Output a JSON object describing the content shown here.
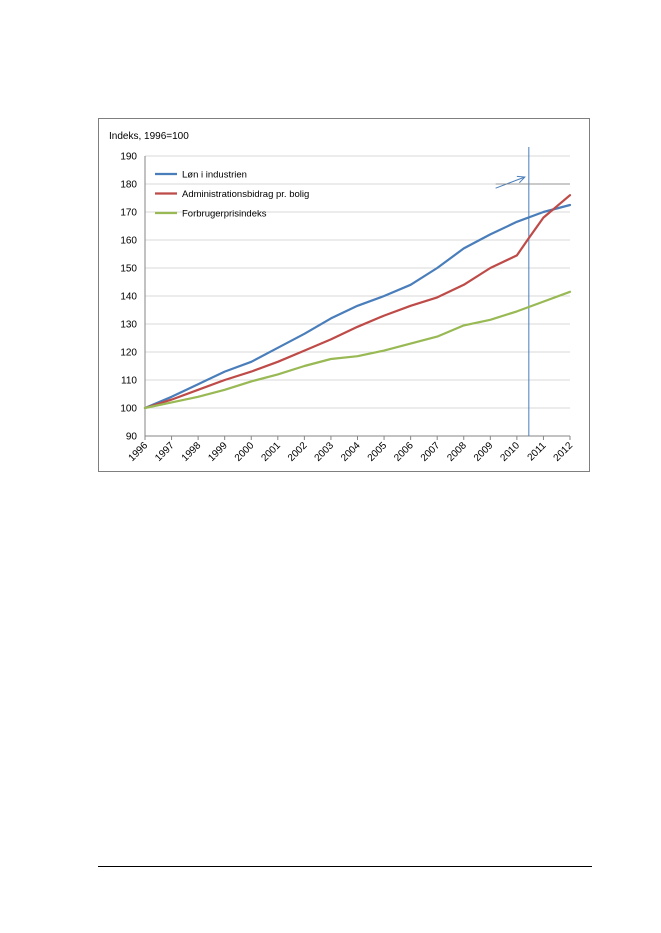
{
  "chart_data": {
    "type": "line",
    "ylabel": "Indeks, 1996=100",
    "ylim": [
      90,
      190
    ],
    "yticks": [
      90,
      100,
      110,
      120,
      130,
      140,
      150,
      160,
      170,
      180,
      190
    ],
    "xlim": [
      1996,
      2012
    ],
    "categories": [
      "1996",
      "1997",
      "1998",
      "1999",
      "2000",
      "2001",
      "2002",
      "2003",
      "2004",
      "2005",
      "2006",
      "2007",
      "2008",
      "2009",
      "2010",
      "2011",
      "2012"
    ],
    "grid": true,
    "legend_position": "top-left",
    "series": [
      {
        "name": "Løn i industrien",
        "color": "#4a7ebb",
        "x": [
          1996,
          1997,
          1998,
          1999,
          2000,
          2001,
          2002,
          2003,
          2004,
          2005,
          2006,
          2007,
          2008,
          2009,
          2010,
          2011,
          2012
        ],
        "values": [
          100,
          104,
          108.5,
          113,
          116.5,
          121.5,
          126.5,
          132,
          136.5,
          140,
          144,
          150,
          157,
          162,
          166.5,
          170,
          172.5
        ]
      },
      {
        "name": "Administrationsbidrag pr. bolig",
        "color": "#be4b48",
        "x": [
          1996,
          1997,
          1998,
          1999,
          2000,
          2001,
          2002,
          2003,
          2004,
          2005,
          2006,
          2007,
          2008,
          2009,
          2010,
          2010.4,
          2011,
          2012
        ],
        "values": [
          100,
          103,
          106.5,
          110,
          113,
          116.5,
          120.5,
          124.5,
          129,
          133,
          136.5,
          139.5,
          144,
          150,
          154.5,
          160,
          168,
          176
        ]
      },
      {
        "name": "Forbrugerprisindeks",
        "color": "#98b954",
        "x": [
          1996,
          1997,
          1998,
          1999,
          2000,
          2001,
          2002,
          2003,
          2004,
          2005,
          2006,
          2007,
          2008,
          2009,
          2010,
          2011,
          2012
        ],
        "values": [
          100,
          102,
          104,
          106.5,
          109.5,
          112,
          115,
          117.5,
          118.5,
          120.5,
          123,
          125.5,
          129.5,
          131.5,
          134.5,
          138,
          141.5
        ]
      }
    ],
    "annotations": [
      {
        "type": "vertical-line",
        "x": 2010.45,
        "color": "#4a7ebb"
      },
      {
        "type": "arrow",
        "from": [
          2009.2,
          178.5
        ],
        "to": [
          2010.3,
          182.5
        ],
        "color": "#4a7ebb"
      },
      {
        "type": "horizontal-line",
        "from_x": 2009.2,
        "to_x": 2012,
        "y": 180,
        "color": "#7f7f7f"
      }
    ]
  }
}
